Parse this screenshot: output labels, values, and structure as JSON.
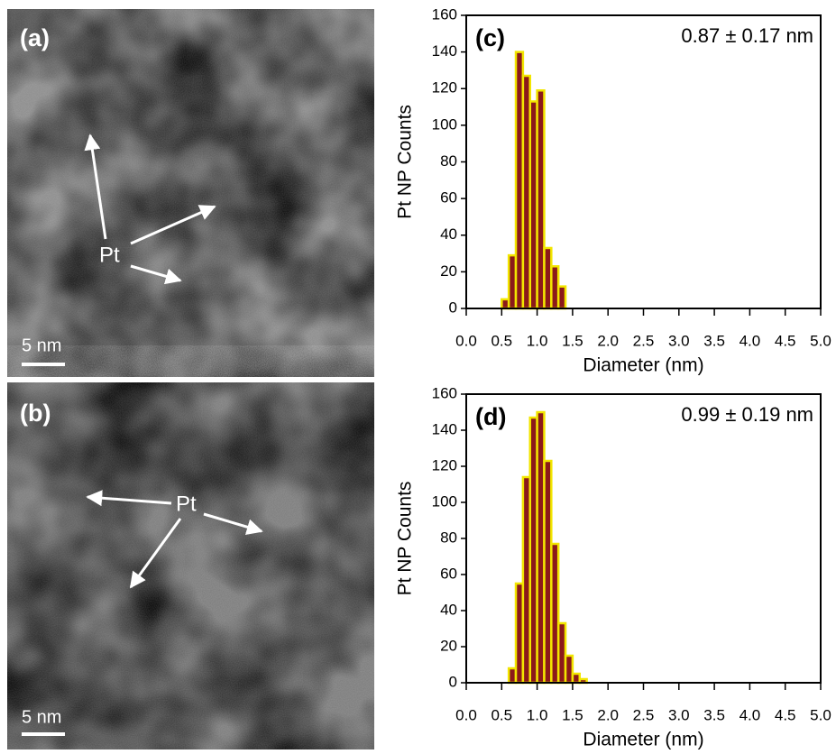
{
  "image_panels": [
    {
      "label": "(a)",
      "marker": "Pt",
      "scale_bar": "5 nm"
    },
    {
      "label": "(b)",
      "marker": "Pt",
      "scale_bar": "5 nm"
    }
  ],
  "chart_data": [
    {
      "type": "histogram",
      "annotation": "(c)",
      "stat_text": "0.87 ± 0.17 nm",
      "x_label": "Diameter (nm)",
      "y_label": "Pt NP Counts",
      "bins": [
        0.5,
        0.6,
        0.7,
        0.8,
        0.9,
        1.0,
        1.1,
        1.2,
        1.3,
        1.4
      ],
      "values": [
        5,
        29,
        140,
        127,
        113,
        119,
        33,
        23,
        12
      ],
      "color": "#8b1a1a",
      "edge_color": "#f2e600",
      "xlim": [
        0,
        5
      ],
      "ylim": [
        0,
        160
      ],
      "xticks": [
        {
          "value": 0,
          "label": "0.0"
        },
        0.5,
        {
          "value": 1,
          "label": "1.0"
        },
        1.5,
        {
          "value": 2,
          "label": "2.0"
        },
        2.5,
        {
          "value": 3,
          "label": "3.0"
        },
        3.5,
        {
          "value": 4,
          "label": "4.0"
        },
        4.5,
        {
          "value": 5,
          "label": "5.0"
        }
      ],
      "yticks": [
        0,
        20,
        40,
        60,
        80,
        100,
        120,
        140,
        160
      ]
    },
    {
      "type": "histogram",
      "annotation": "(d)",
      "stat_text": "0.99 ± 0.19 nm",
      "x_label": "Diameter (nm)",
      "y_label": "Pt NP Counts",
      "bins": [
        0.6,
        0.7,
        0.8,
        0.9,
        1.0,
        1.1,
        1.2,
        1.3,
        1.4,
        1.5,
        1.6,
        1.7
      ],
      "values": [
        8,
        55,
        114,
        147,
        150,
        123,
        77,
        33,
        15,
        5,
        2
      ],
      "color": "#8b1a1a",
      "edge_color": "#f2e600",
      "xlim": [
        0,
        5
      ],
      "ylim": [
        0,
        160
      ],
      "xticks": [
        {
          "value": 0,
          "label": "0.0"
        },
        0.5,
        {
          "value": 1,
          "label": "1.0"
        },
        1.5,
        {
          "value": 2,
          "label": "2.0"
        },
        2.5,
        {
          "value": 3,
          "label": "3.0"
        },
        3.5,
        {
          "value": 4,
          "label": "4.0"
        },
        4.5,
        {
          "value": 5,
          "label": "5.0"
        }
      ],
      "yticks": [
        0,
        20,
        40,
        60,
        80,
        100,
        120,
        140,
        160
      ]
    }
  ]
}
